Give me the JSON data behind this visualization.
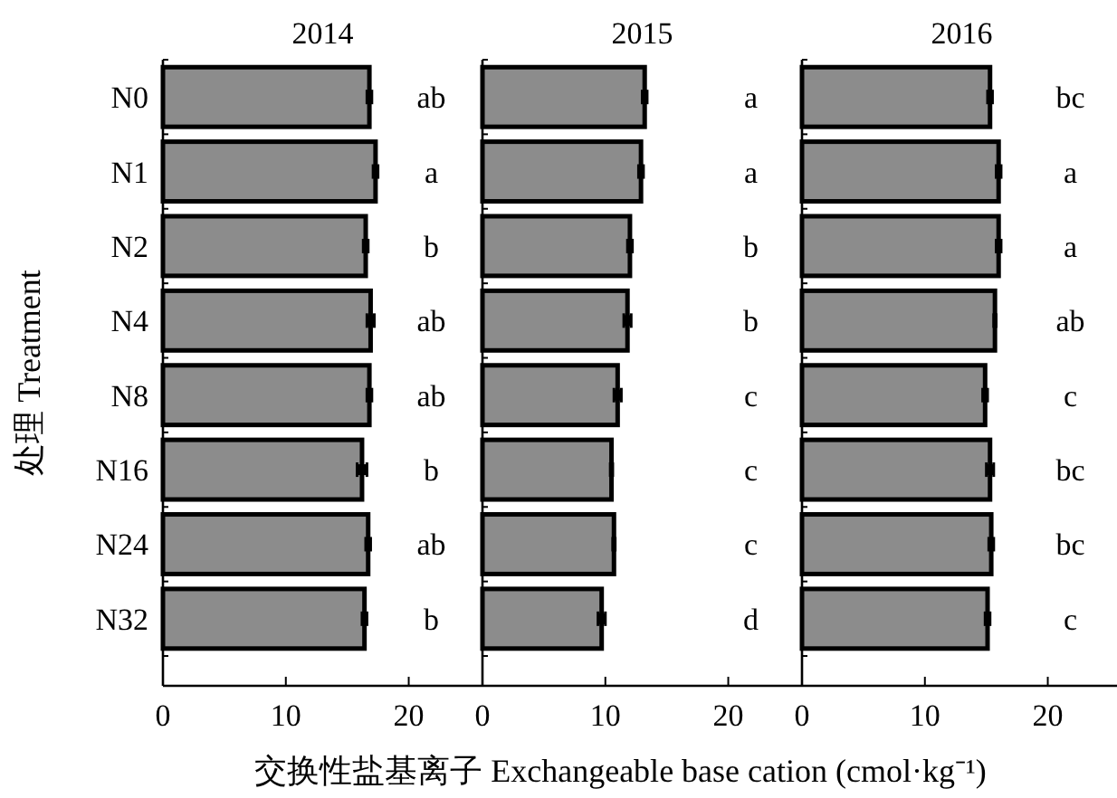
{
  "chart_data": [
    {
      "type": "bar",
      "orientation": "horizontal",
      "title": "2014",
      "ylabel": "处理 Treatment",
      "categories": [
        "N0",
        "N1",
        "N2",
        "N4",
        "N8",
        "N16",
        "N24",
        "N32"
      ],
      "series": [
        {
          "color": "#8c8c8c",
          "values": [
            16.8,
            17.3,
            16.5,
            16.9,
            16.8,
            16.2,
            16.7,
            16.4
          ],
          "errors": [
            0.2,
            0.2,
            0.2,
            0.3,
            0.2,
            0.4,
            0.2,
            0.2
          ]
        }
      ],
      "xlim": [
        0,
        26
      ],
      "xticks": [
        0,
        10,
        20
      ],
      "annotations": [
        "ab",
        "a",
        "b",
        "ab",
        "ab",
        "b",
        "ab",
        "b"
      ]
    },
    {
      "type": "bar",
      "orientation": "horizontal",
      "title": "2015",
      "xlabel": "交换性盐基离子 Exchangeable base cation (cmol·kg⁻¹)",
      "categories": [
        null,
        null,
        null,
        null,
        null,
        null,
        null,
        null
      ],
      "series": [
        {
          "color": "#8c8c8c",
          "values": [
            13.2,
            12.9,
            12.0,
            11.8,
            11.0,
            10.5,
            10.7,
            9.7
          ],
          "errors": [
            0.2,
            0.2,
            0.2,
            0.3,
            0.3,
            0.1,
            0.1,
            0.3
          ]
        }
      ],
      "xlim": [
        0,
        26
      ],
      "xticks": [
        0,
        10,
        20
      ],
      "tick_labels": "x",
      "annotations": [
        "a",
        "a",
        "b",
        "b",
        "c",
        "c",
        "c",
        "d"
      ]
    },
    {
      "type": "bar",
      "orientation": "horizontal",
      "title": "2016",
      "categories": [
        null,
        null,
        null,
        null,
        null,
        null,
        null,
        null
      ],
      "series": [
        {
          "color": "#8c8c8c",
          "values": [
            15.3,
            16.0,
            16.0,
            15.7,
            14.9,
            15.3,
            15.4,
            15.1
          ],
          "errors": [
            0.2,
            0.2,
            0.2,
            0.1,
            0.2,
            0.3,
            0.2,
            0.2
          ]
        }
      ],
      "xlim": [
        0,
        26
      ],
      "xticks": [
        0,
        10,
        20
      ],
      "tick_labels": "x",
      "annotations": [
        "bc",
        "a",
        "a",
        "ab",
        "c",
        "bc",
        "bc",
        "c"
      ]
    }
  ]
}
